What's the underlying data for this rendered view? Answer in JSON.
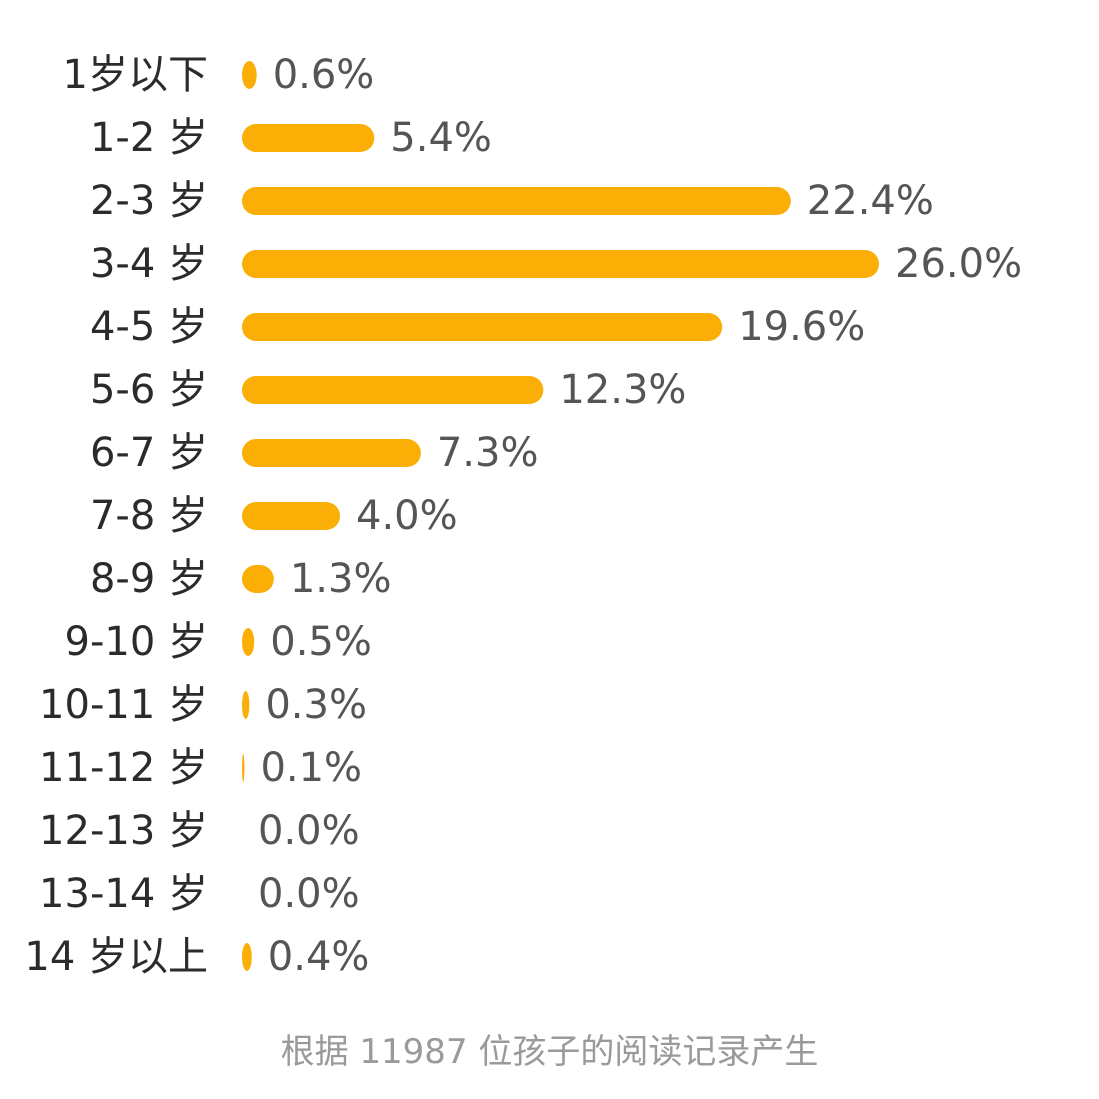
{
  "chart_data": {
    "type": "bar",
    "orientation": "horizontal",
    "categories": [
      "1岁以下",
      "1-2 岁",
      "2-3 岁",
      "3-4 岁",
      "4-5 岁",
      "5-6 岁",
      "6-7 岁",
      "7-8 岁",
      "8-9 岁",
      "9-10 岁",
      "10-11 岁",
      "11-12 岁",
      "12-13 岁",
      "13-14 岁",
      "14 岁以上"
    ],
    "values": [
      0.6,
      5.4,
      22.4,
      26.0,
      19.6,
      12.3,
      7.3,
      4.0,
      1.3,
      0.5,
      0.3,
      0.1,
      0.0,
      0.0,
      0.4
    ],
    "value_labels": [
      "0.6%",
      "5.4%",
      "22.4%",
      "26.0%",
      "19.6%",
      "12.3%",
      "7.3%",
      "4.0%",
      "1.3%",
      "0.5%",
      "0.3%",
      "0.1%",
      "0.0%",
      "0.0%",
      "0.4%"
    ],
    "unit": "%",
    "bar_color": "#FBAE05",
    "grid": false,
    "legend": false
  },
  "footnote": "根据 11987 位孩子的阅读记录产生"
}
